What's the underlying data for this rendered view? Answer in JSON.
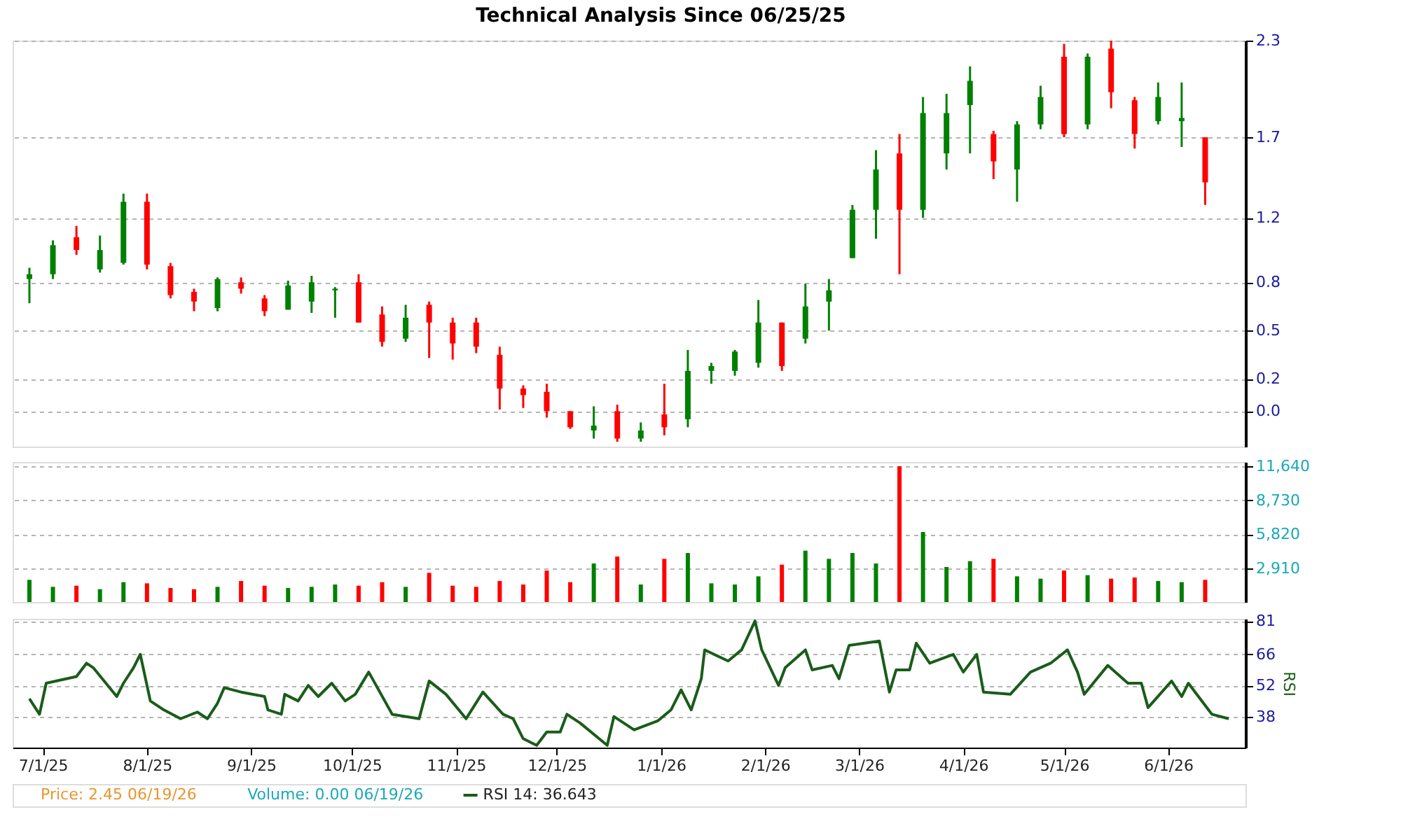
{
  "chart_data": [
    {
      "type": "candlestick",
      "title": "Technical Analysis Since 06/25/25",
      "x": [
        "2025-06-27",
        "2025-07-04",
        "2025-07-11",
        "2025-07-18",
        "2025-07-25",
        "2025-08-01",
        "2025-08-08",
        "2025-08-15",
        "2025-08-22",
        "2025-08-29",
        "2025-09-05",
        "2025-09-12",
        "2025-09-19",
        "2025-09-26",
        "2025-10-03",
        "2025-10-10",
        "2025-10-17",
        "2025-10-24",
        "2025-10-31",
        "2025-11-07",
        "2025-11-14",
        "2025-11-21",
        "2025-11-28",
        "2025-12-05",
        "2025-12-12",
        "2025-12-19",
        "2025-12-26",
        "2026-01-02",
        "2026-01-09",
        "2026-01-16",
        "2026-01-23",
        "2026-01-30",
        "2026-02-06",
        "2026-02-13",
        "2026-02-20",
        "2026-02-27",
        "2026-03-06",
        "2026-03-13",
        "2026-03-20",
        "2026-03-27",
        "2026-04-03",
        "2026-04-10",
        "2026-04-17",
        "2026-04-24",
        "2026-05-01",
        "2026-05-08",
        "2026-05-15",
        "2026-05-22",
        "2026-05-29",
        "2026-06-05",
        "2026-06-12"
      ],
      "ohlc": [
        [
          0.82,
          0.89,
          0.67,
          0.85
        ],
        [
          0.85,
          1.06,
          0.82,
          1.03
        ],
        [
          1.08,
          1.15,
          0.97,
          1.0
        ],
        [
          0.88,
          1.09,
          0.86,
          1.0
        ],
        [
          0.92,
          1.35,
          0.91,
          1.3
        ],
        [
          1.3,
          1.35,
          0.88,
          0.91
        ],
        [
          0.9,
          0.92,
          0.7,
          0.72
        ],
        [
          0.74,
          0.76,
          0.62,
          0.68
        ],
        [
          0.64,
          0.83,
          0.62,
          0.82
        ],
        [
          0.8,
          0.83,
          0.73,
          0.76
        ],
        [
          0.7,
          0.72,
          0.59,
          0.62
        ],
        [
          0.63,
          0.81,
          0.63,
          0.78
        ],
        [
          0.68,
          0.84,
          0.61,
          0.8
        ],
        [
          0.75,
          0.77,
          0.58,
          0.76
        ],
        [
          0.8,
          0.85,
          0.55,
          0.55
        ],
        [
          0.6,
          0.65,
          0.4,
          0.43
        ],
        [
          0.45,
          0.66,
          0.43,
          0.58
        ],
        [
          0.66,
          0.68,
          0.33,
          0.55
        ],
        [
          0.55,
          0.58,
          0.32,
          0.42
        ],
        [
          0.55,
          0.58,
          0.36,
          0.4
        ],
        [
          0.35,
          0.4,
          0.01,
          0.14
        ],
        [
          0.14,
          0.16,
          0.02,
          0.1
        ],
        [
          0.12,
          0.17,
          -0.04,
          0.0
        ],
        [
          0.0,
          0.0,
          -0.11,
          -0.1
        ],
        [
          -0.12,
          0.03,
          -0.17,
          -0.09
        ],
        [
          0.0,
          0.04,
          -0.19,
          -0.17
        ],
        [
          -0.17,
          -0.07,
          -0.19,
          -0.12
        ],
        [
          -0.02,
          0.17,
          -0.15,
          -0.1
        ],
        [
          -0.05,
          0.38,
          -0.1,
          0.25
        ],
        [
          0.25,
          0.3,
          0.17,
          0.28
        ],
        [
          0.25,
          0.38,
          0.22,
          0.37
        ],
        [
          0.3,
          0.69,
          0.27,
          0.55
        ],
        [
          0.55,
          0.55,
          0.25,
          0.28
        ],
        [
          0.45,
          0.79,
          0.42,
          0.65
        ],
        [
          0.68,
          0.82,
          0.5,
          0.75
        ],
        [
          0.95,
          1.28,
          0.95,
          1.25
        ],
        [
          1.25,
          1.62,
          1.07,
          1.5
        ],
        [
          1.6,
          1.72,
          0.85,
          1.25
        ],
        [
          1.25,
          1.95,
          1.2,
          1.85
        ],
        [
          1.6,
          1.97,
          1.5,
          1.85
        ],
        [
          1.9,
          2.14,
          1.6,
          2.05
        ],
        [
          1.72,
          1.74,
          1.44,
          1.55
        ],
        [
          1.5,
          1.8,
          1.3,
          1.78
        ],
        [
          1.78,
          2.02,
          1.75,
          1.95
        ],
        [
          2.2,
          2.28,
          1.7,
          1.72
        ],
        [
          1.78,
          2.22,
          1.75,
          2.2
        ],
        [
          2.25,
          2.3,
          1.88,
          1.98
        ],
        [
          1.93,
          1.95,
          1.63,
          1.72
        ],
        [
          1.8,
          2.04,
          1.78,
          1.95
        ],
        [
          1.8,
          2.04,
          1.64,
          1.82
        ],
        [
          1.7,
          1.7,
          1.28,
          1.42
        ]
      ],
      "colors": [
        "#008000",
        "#008000",
        "#ff0000",
        "#008000",
        "#008000",
        "#ff0000",
        "#ff0000",
        "#ff0000",
        "#008000",
        "#ff0000",
        "#ff0000",
        "#008000",
        "#008000",
        "#008000",
        "#ff0000",
        "#ff0000",
        "#008000",
        "#ff0000",
        "#ff0000",
        "#ff0000",
        "#ff0000",
        "#ff0000",
        "#ff0000",
        "#ff0000",
        "#008000",
        "#ff0000",
        "#008000",
        "#ff0000",
        "#008000",
        "#008000",
        "#008000",
        "#008000",
        "#ff0000",
        "#008000",
        "#008000",
        "#008000",
        "#008000",
        "#ff0000",
        "#008000",
        "#008000",
        "#008000",
        "#ff0000",
        "#008000",
        "#008000",
        "#ff0000",
        "#008000",
        "#ff0000",
        "#ff0000",
        "#008000",
        "#008000",
        "#ff0000"
      ],
      "xlim": [
        "2025-06-22",
        "2026-06-24"
      ],
      "ylim": [
        -0.22,
        2.3
      ],
      "yticks": [
        2.3,
        1.7,
        1.2,
        0.8,
        0.5,
        0.2,
        {
          "value": 0,
          "label": "0.0"
        }
      ],
      "grid": "y",
      "tick_labels": "y"
    },
    {
      "type": "bar",
      "x": [
        "2025-06-27",
        "2025-07-04",
        "2025-07-11",
        "2025-07-18",
        "2025-07-25",
        "2025-08-01",
        "2025-08-08",
        "2025-08-15",
        "2025-08-22",
        "2025-08-29",
        "2025-09-05",
        "2025-09-12",
        "2025-09-19",
        "2025-09-26",
        "2025-10-03",
        "2025-10-10",
        "2025-10-17",
        "2025-10-24",
        "2025-10-31",
        "2025-11-07",
        "2025-11-14",
        "2025-11-21",
        "2025-11-28",
        "2025-12-05",
        "2025-12-12",
        "2025-12-19",
        "2025-12-26",
        "2026-01-02",
        "2026-01-09",
        "2026-01-16",
        "2026-01-23",
        "2026-01-30",
        "2026-02-06",
        "2026-02-13",
        "2026-02-20",
        "2026-02-27",
        "2026-03-06",
        "2026-03-13",
        "2026-03-20",
        "2026-03-27",
        "2026-04-03",
        "2026-04-10",
        "2026-04-17",
        "2026-04-24",
        "2026-05-01",
        "2026-05-08",
        "2026-05-15",
        "2026-05-22",
        "2026-05-29",
        "2026-06-05",
        "2026-06-12"
      ],
      "values": [
        1900,
        1300,
        1400,
        1100,
        1700,
        1600,
        1200,
        1100,
        1300,
        1800,
        1400,
        1200,
        1300,
        1500,
        1400,
        1700,
        1300,
        2500,
        1400,
        1300,
        1800,
        1500,
        2700,
        1700,
        3300,
        3900,
        1500,
        3700,
        4200,
        1600,
        1500,
        2200,
        3200,
        4400,
        3700,
        4200,
        3300,
        11640,
        6000,
        3000,
        3500,
        3700,
        2200,
        2000,
        2700,
        2300,
        2000,
        2100,
        1800,
        1700,
        1900
      ],
      "colors": [
        "#008000",
        "#008000",
        "#ff0000",
        "#008000",
        "#008000",
        "#ff0000",
        "#ff0000",
        "#ff0000",
        "#008000",
        "#ff0000",
        "#ff0000",
        "#008000",
        "#008000",
        "#008000",
        "#ff0000",
        "#ff0000",
        "#008000",
        "#ff0000",
        "#ff0000",
        "#ff0000",
        "#ff0000",
        "#ff0000",
        "#ff0000",
        "#ff0000",
        "#008000",
        "#ff0000",
        "#008000",
        "#ff0000",
        "#008000",
        "#008000",
        "#008000",
        "#008000",
        "#ff0000",
        "#008000",
        "#008000",
        "#008000",
        "#008000",
        "#ff0000",
        "#008000",
        "#008000",
        "#008000",
        "#ff0000",
        "#008000",
        "#008000",
        "#ff0000",
        "#008000",
        "#ff0000",
        "#ff0000",
        "#008000",
        "#008000",
        "#ff0000"
      ],
      "xlim": [
        "2025-06-22",
        "2026-06-24"
      ],
      "ylim": [
        0,
        12000
      ],
      "yticks": [
        {
          "value": 2910,
          "label": "2,910"
        },
        {
          "value": 5820,
          "label": "5,820"
        },
        {
          "value": 8730,
          "label": "8,730"
        },
        {
          "value": 11640,
          "label": "11,640"
        }
      ],
      "grid": "y",
      "tick_labels": "y"
    },
    {
      "type": "line",
      "ylabel": "RSI",
      "x": [
        "2025-06-27",
        "2025-06-30",
        "2025-07-02",
        "2025-07-11",
        "2025-07-14",
        "2025-07-16",
        "2025-07-23",
        "2025-07-25",
        "2025-07-28",
        "2025-07-30",
        "2025-08-02",
        "2025-08-06",
        "2025-08-11",
        "2025-08-16",
        "2025-08-19",
        "2025-08-22",
        "2025-08-24",
        "2025-08-29",
        "2025-09-05",
        "2025-09-06",
        "2025-09-10",
        "2025-09-11",
        "2025-09-15",
        "2025-09-18",
        "2025-09-21",
        "2025-09-25",
        "2025-09-29",
        "2025-10-02",
        "2025-10-06",
        "2025-10-13",
        "2025-10-21",
        "2025-10-24",
        "2025-10-29",
        "2025-11-04",
        "2025-11-09",
        "2025-11-15",
        "2025-11-18",
        "2025-11-21",
        "2025-11-25",
        "2025-11-28",
        "2025-12-02",
        "2025-12-04",
        "2025-12-08",
        "2025-12-16",
        "2025-12-18",
        "2025-12-24",
        "2025-12-31",
        "2026-01-04",
        "2026-01-07",
        "2026-01-10",
        "2026-01-13",
        "2026-01-14",
        "2026-01-21",
        "2026-01-25",
        "2026-01-29",
        "2026-01-31",
        "2026-02-05",
        "2026-02-07",
        "2026-02-13",
        "2026-02-15",
        "2026-02-21",
        "2026-02-23",
        "2026-02-26",
        "2026-03-07",
        "2026-03-10",
        "2026-03-12",
        "2026-03-16",
        "2026-03-18",
        "2026-03-22",
        "2026-03-29",
        "2026-04-01",
        "2026-04-05",
        "2026-04-07",
        "2026-04-15",
        "2026-04-21",
        "2026-04-27",
        "2026-05-02",
        "2026-05-05",
        "2026-05-07",
        "2026-05-14",
        "2026-05-20",
        "2026-05-24",
        "2026-05-26",
        "2026-06-02",
        "2026-06-05",
        "2026-06-07",
        "2026-06-14",
        "2026-06-19"
      ],
      "series": [
        {
          "name": "RSI 14: 36.643",
          "color": "#1a5c1a",
          "values": [
            46,
            39,
            53,
            56,
            62,
            60,
            47,
            53,
            60,
            66,
            45,
            41,
            37,
            40,
            37,
            44,
            51,
            49,
            47,
            41,
            39,
            48,
            45,
            52,
            47,
            53,
            45,
            48,
            58,
            39,
            37,
            54,
            48,
            37,
            49,
            39,
            37,
            28,
            25,
            31,
            31,
            39,
            35,
            25,
            38,
            32,
            36,
            41,
            50,
            41,
            55,
            68,
            63,
            68,
            81,
            68,
            52,
            60,
            68,
            59,
            61,
            55,
            70,
            72,
            49,
            59,
            59,
            71,
            62,
            66,
            58,
            66,
            49,
            48,
            58,
            62,
            68,
            58,
            48,
            61,
            53,
            53,
            42,
            54,
            47,
            53,
            39,
            37
          ]
        }
      ],
      "xlim": [
        "2025-06-22",
        "2026-06-24"
      ],
      "xticks": [
        {
          "value": "2025-07-01",
          "label": "7/1/25"
        },
        {
          "value": "2025-08-01",
          "label": "8/1/25"
        },
        {
          "value": "2025-09-01",
          "label": "9/1/25"
        },
        {
          "value": "2025-10-01",
          "label": "10/1/25"
        },
        {
          "value": "2025-11-01",
          "label": "11/1/25"
        },
        {
          "value": "2025-12-01",
          "label": "12/1/25"
        },
        {
          "value": "2026-01-01",
          "label": "1/1/26"
        },
        {
          "value": "2026-02-01",
          "label": "2/1/26"
        },
        {
          "value": "2026-03-01",
          "label": "3/1/26"
        },
        {
          "value": "2026-04-01",
          "label": "4/1/26"
        },
        {
          "value": "2026-05-01",
          "label": "5/1/26"
        },
        {
          "value": "2026-06-01",
          "label": "6/1/26"
        }
      ],
      "ylim": [
        24,
        82
      ],
      "yticks": [
        38,
        52,
        66,
        81
      ],
      "grid": "y",
      "legend": "bottom left",
      "annotations": [
        "Price: 2.45  06/19/26",
        "Volume: 0.00  06/19/26"
      ]
    }
  ]
}
